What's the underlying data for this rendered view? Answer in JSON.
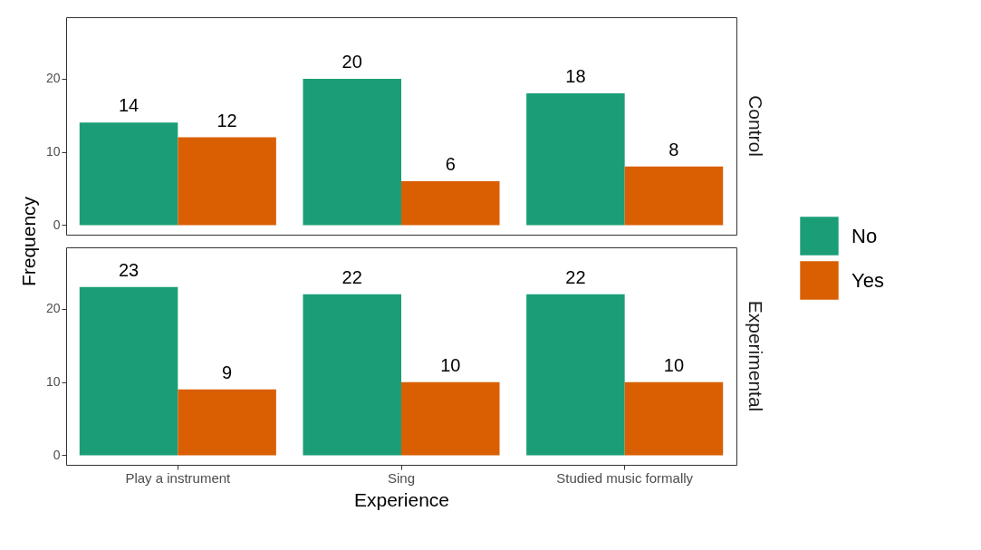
{
  "chart_data": [
    {
      "type": "bar",
      "title": "Control",
      "ylabel": "Frequency",
      "categories": [
        null,
        null,
        null
      ],
      "series": [
        {
          "name": "No",
          "color": "#1b9e77",
          "values": [
            14,
            20,
            18
          ]
        },
        {
          "name": "Yes",
          "color": "#d95f02",
          "values": [
            12,
            6,
            8
          ]
        }
      ],
      "ylim": [
        -1.3,
        28.4
      ],
      "yticks": [
        0,
        10,
        20
      ],
      "data_labels": true,
      "legend": "right",
      "grid": false,
      "tick_labels": "y"
    },
    {
      "type": "bar",
      "title": "Experimental",
      "xlabel": "Experience",
      "categories": [
        "Play a instrument",
        "Sing",
        "Studied music formally"
      ],
      "series": [
        {
          "name": "No",
          "color": "#1b9e77",
          "values": [
            23,
            22,
            22
          ]
        },
        {
          "name": "Yes",
          "color": "#d95f02",
          "values": [
            9,
            10,
            10
          ]
        }
      ],
      "ylim": [
        -1.3,
        28.4
      ],
      "yticks": [
        0,
        10,
        20
      ],
      "data_labels": true,
      "legend": "right",
      "grid": false
    }
  ]
}
